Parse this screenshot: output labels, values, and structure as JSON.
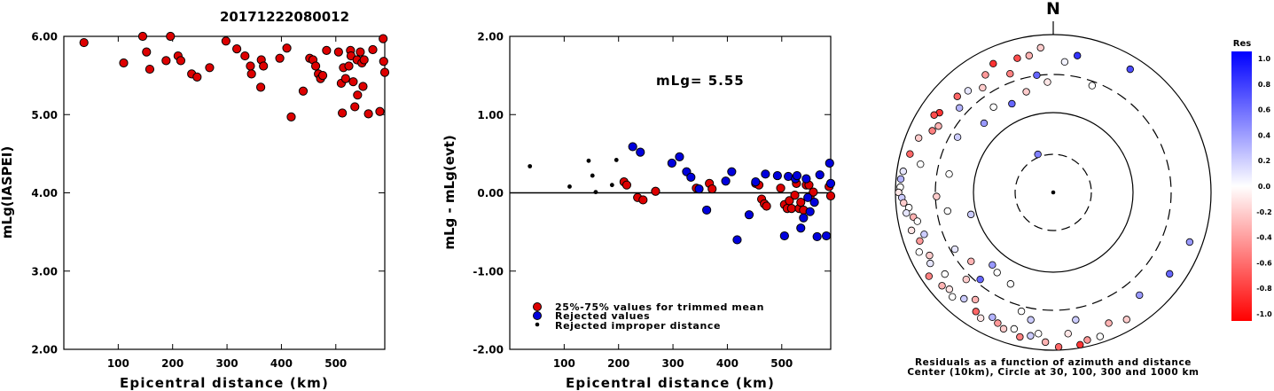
{
  "page_title": "20171222080012",
  "chart_data": [
    {
      "type": "scatter",
      "id": "left",
      "xlabel": "Epicentral distance (km)",
      "ylabel": "mLg(IASPEI)",
      "xlim": [
        0,
        590
      ],
      "ylim": [
        2.0,
        6.0
      ],
      "xticks": [
        100,
        200,
        300,
        400,
        500
      ],
      "yticks": [
        "2.00",
        "3.00",
        "4.00",
        "5.00",
        "6.00"
      ],
      "series": [
        {
          "color": "#dd0000",
          "points": [
            [
              37,
              5.92
            ],
            [
              110,
              5.66
            ],
            [
              145,
              6.0
            ],
            [
              152,
              5.8
            ],
            [
              158,
              5.58
            ],
            [
              196,
              6.0
            ],
            [
              188,
              5.69
            ],
            [
              210,
              5.75
            ],
            [
              215,
              5.69
            ],
            [
              235,
              5.52
            ],
            [
              245,
              5.48
            ],
            [
              268,
              5.6
            ],
            [
              298,
              5.94
            ],
            [
              318,
              5.84
            ],
            [
              333,
              5.75
            ],
            [
              343,
              5.62
            ],
            [
              345,
              5.52
            ],
            [
              362,
              5.35
            ],
            [
              363,
              5.7
            ],
            [
              367,
              5.62
            ],
            [
              397,
              5.72
            ],
            [
              410,
              5.85
            ],
            [
              418,
              4.97
            ],
            [
              440,
              5.3
            ],
            [
              452,
              5.72
            ],
            [
              458,
              5.7
            ],
            [
              463,
              5.62
            ],
            [
              468,
              5.52
            ],
            [
              472,
              5.46
            ],
            [
              476,
              5.5
            ],
            [
              483,
              5.82
            ],
            [
              505,
              5.8
            ],
            [
              510,
              5.4
            ],
            [
              512,
              5.02
            ],
            [
              514,
              5.6
            ],
            [
              518,
              5.46
            ],
            [
              524,
              5.62
            ],
            [
              527,
              5.82
            ],
            [
              528,
              5.75
            ],
            [
              532,
              5.42
            ],
            [
              535,
              5.1
            ],
            [
              539,
              5.7
            ],
            [
              540,
              5.25
            ],
            [
              545,
              5.8
            ],
            [
              548,
              5.66
            ],
            [
              550,
              5.36
            ],
            [
              552,
              5.7
            ],
            [
              560,
              5.01
            ],
            [
              568,
              5.83
            ],
            [
              581,
              5.04
            ],
            [
              587,
              5.97
            ],
            [
              588,
              5.68
            ],
            [
              590,
              5.54
            ]
          ]
        }
      ]
    },
    {
      "type": "scatter",
      "id": "middle",
      "xlabel": "Epicentral distance (km)",
      "ylabel": "mLg - mLg(evt)",
      "xlim": [
        0,
        590
      ],
      "ylim": [
        -2.0,
        2.0
      ],
      "xticks": [
        100,
        200,
        300,
        400,
        500
      ],
      "yticks": [
        "-2.00",
        "-1.00",
        "0.00",
        "1.00",
        "2.00"
      ],
      "annotation": "mLg= 5.55",
      "series": [
        {
          "name": "25%-75% values for trimmed mean",
          "color": "#dd0000",
          "marker": "circle",
          "points": [
            [
              210,
              0.14
            ],
            [
              215,
              0.1
            ],
            [
              235,
              -0.06
            ],
            [
              245,
              -0.09
            ],
            [
              268,
              0.02
            ],
            [
              343,
              0.06
            ],
            [
              367,
              0.12
            ],
            [
              372,
              0.05
            ],
            [
              452,
              0.12
            ],
            [
              458,
              0.1
            ],
            [
              463,
              -0.08
            ],
            [
              468,
              -0.14
            ],
            [
              472,
              -0.17
            ],
            [
              498,
              0.06
            ],
            [
              505,
              -0.15
            ],
            [
              510,
              -0.2
            ],
            [
              514,
              -0.1
            ],
            [
              518,
              -0.2
            ],
            [
              524,
              -0.03
            ],
            [
              527,
              0.12
            ],
            [
              532,
              -0.2
            ],
            [
              535,
              -0.12
            ],
            [
              540,
              -0.22
            ],
            [
              545,
              0.1
            ],
            [
              550,
              0.1
            ],
            [
              552,
              -0.05
            ],
            [
              558,
              0.01
            ],
            [
              587,
              0.08
            ],
            [
              590,
              -0.04
            ]
          ]
        },
        {
          "name": "Rejected values",
          "color": "#0000dd",
          "marker": "circle",
          "points": [
            [
              226,
              0.59
            ],
            [
              240,
              0.52
            ],
            [
              298,
              0.38
            ],
            [
              312,
              0.46
            ],
            [
              325,
              0.27
            ],
            [
              333,
              0.2
            ],
            [
              348,
              0.05
            ],
            [
              362,
              -0.22
            ],
            [
              397,
              0.15
            ],
            [
              408,
              0.27
            ],
            [
              418,
              -0.6
            ],
            [
              440,
              -0.28
            ],
            [
              452,
              0.14
            ],
            [
              470,
              0.24
            ],
            [
              492,
              0.22
            ],
            [
              505,
              -0.55
            ],
            [
              512,
              0.21
            ],
            [
              525,
              0.18
            ],
            [
              528,
              0.22
            ],
            [
              535,
              -0.45
            ],
            [
              540,
              -0.32
            ],
            [
              545,
              0.18
            ],
            [
              548,
              -0.06
            ],
            [
              552,
              -0.24
            ],
            [
              560,
              -0.12
            ],
            [
              565,
              -0.56
            ],
            [
              570,
              0.23
            ],
            [
              582,
              -0.55
            ],
            [
              588,
              0.38
            ],
            [
              590,
              0.12
            ]
          ]
        },
        {
          "name": "Rejected improper distance",
          "color": "#000000",
          "marker": "dot",
          "points": [
            [
              37,
              0.34
            ],
            [
              110,
              0.08
            ],
            [
              145,
              0.41
            ],
            [
              152,
              0.22
            ],
            [
              158,
              0.01
            ],
            [
              188,
              0.1
            ],
            [
              196,
              0.42
            ]
          ]
        }
      ]
    },
    {
      "type": "polar",
      "id": "right",
      "north_label": "N",
      "caption_line1": "Residuals as a function of azimuth and distance",
      "caption_line2": "Center (10km), Circle at 30, 100, 300 and 1000 km",
      "points": [
        {
          "az": 355,
          "r": 0.92,
          "res": -0.2
        },
        {
          "az": 5,
          "r": 0.83,
          "res": 0.05
        },
        {
          "az": 10,
          "r": 0.88,
          "res": 0.8
        },
        {
          "az": 32,
          "r": 0.92,
          "res": 0.7
        },
        {
          "az": 20,
          "r": 0.72,
          "res": 0.0
        },
        {
          "az": 345,
          "r": 0.88,
          "res": -0.7
        },
        {
          "az": 340,
          "r": 0.8,
          "res": -0.5
        },
        {
          "az": 350,
          "r": 0.88,
          "res": -0.3
        },
        {
          "az": 352,
          "r": 0.75,
          "res": 0.6
        },
        {
          "az": 357,
          "r": 0.7,
          "res": -0.1
        },
        {
          "az": 335,
          "r": 0.9,
          "res": -0.8
        },
        {
          "az": 330,
          "r": 0.86,
          "res": -0.4
        },
        {
          "az": 326,
          "r": 0.8,
          "res": -0.2
        },
        {
          "az": 320,
          "r": 0.84,
          "res": 0.1
        },
        {
          "az": 315,
          "r": 0.86,
          "res": -0.6
        },
        {
          "az": 312,
          "r": 0.8,
          "res": 0.3
        },
        {
          "az": 305,
          "r": 0.88,
          "res": -0.8
        },
        {
          "az": 303,
          "r": 0.9,
          "res": -0.7
        },
        {
          "az": 300,
          "r": 0.84,
          "res": -0.3
        },
        {
          "az": 297,
          "r": 0.86,
          "res": -0.5
        },
        {
          "az": 292,
          "r": 0.92,
          "res": -0.2
        },
        {
          "az": 285,
          "r": 0.94,
          "res": -0.6
        },
        {
          "az": 282,
          "r": 0.86,
          "res": 0.0
        },
        {
          "az": 278,
          "r": 0.96,
          "res": 0.1
        },
        {
          "az": 275,
          "r": 0.97,
          "res": 0.3
        },
        {
          "az": 272,
          "r": 0.97,
          "res": 0.0
        },
        {
          "az": 270,
          "r": 0.98,
          "res": -0.1
        },
        {
          "az": 268,
          "r": 0.96,
          "res": 0.2
        },
        {
          "az": 266,
          "r": 0.95,
          "res": -0.2
        },
        {
          "az": 264,
          "r": 0.92,
          "res": 0.0
        },
        {
          "az": 262,
          "r": 0.94,
          "res": 0.1
        },
        {
          "az": 260,
          "r": 0.9,
          "res": -0.3
        },
        {
          "az": 258,
          "r": 0.88,
          "res": 0.0
        },
        {
          "az": 255,
          "r": 0.93,
          "res": -0.1
        },
        {
          "az": 252,
          "r": 0.86,
          "res": 0.2
        },
        {
          "az": 250,
          "r": 0.9,
          "res": -0.4
        },
        {
          "az": 246,
          "r": 0.93,
          "res": 0.0
        },
        {
          "az": 243,
          "r": 0.88,
          "res": -0.2
        },
        {
          "az": 240,
          "r": 0.9,
          "res": 0.1
        },
        {
          "az": 236,
          "r": 0.95,
          "res": -0.5
        },
        {
          "az": 233,
          "r": 0.86,
          "res": 0.0
        },
        {
          "az": 230,
          "r": 0.92,
          "res": -0.3
        },
        {
          "az": 227,
          "r": 0.9,
          "res": -0.1
        },
        {
          "az": 224,
          "r": 0.92,
          "res": 0.0
        },
        {
          "az": 220,
          "r": 0.88,
          "res": 0.2
        },
        {
          "az": 216,
          "r": 0.84,
          "res": -0.3
        },
        {
          "az": 213,
          "r": 0.9,
          "res": -0.6
        },
        {
          "az": 210,
          "r": 0.92,
          "res": -0.1
        },
        {
          "az": 206,
          "r": 0.88,
          "res": 0.3
        },
        {
          "az": 203,
          "r": 0.9,
          "res": -0.4
        },
        {
          "az": 200,
          "r": 0.92,
          "res": -0.2
        },
        {
          "az": 196,
          "r": 0.9,
          "res": 0.0
        },
        {
          "az": 193,
          "r": 0.94,
          "res": -0.5
        },
        {
          "az": 189,
          "r": 0.92,
          "res": 0.2
        },
        {
          "az": 186,
          "r": 0.9,
          "res": 0.0
        },
        {
          "az": 183,
          "r": 0.95,
          "res": -0.3
        },
        {
          "az": 178,
          "r": 0.98,
          "res": -0.6
        },
        {
          "az": 174,
          "r": 0.9,
          "res": -0.1
        },
        {
          "az": 170,
          "r": 0.98,
          "res": -0.8
        },
        {
          "az": 167,
          "r": 0.96,
          "res": -0.4
        },
        {
          "az": 162,
          "r": 0.96,
          "res": 0.0
        },
        {
          "az": 157,
          "r": 0.9,
          "res": -0.3
        },
        {
          "az": 150,
          "r": 0.93,
          "res": -0.2
        },
        {
          "az": 140,
          "r": 0.85,
          "res": 0.4
        },
        {
          "az": 125,
          "r": 0.9,
          "res": 0.6
        },
        {
          "az": 110,
          "r": 0.92,
          "res": 0.4
        },
        {
          "az": 255,
          "r": 0.54,
          "res": 0.2
        },
        {
          "az": 280,
          "r": 0.67,
          "res": 0.0
        },
        {
          "az": 268,
          "r": 0.74,
          "res": -0.2
        },
        {
          "az": 240,
          "r": 0.72,
          "res": 0.1
        },
        {
          "az": 230,
          "r": 0.68,
          "res": -0.3
        },
        {
          "az": 215,
          "r": 0.62,
          "res": 0.0
        },
        {
          "az": 205,
          "r": 0.64,
          "res": 0.0
        },
        {
          "az": 300,
          "r": 0.7,
          "res": 0.2
        },
        {
          "az": 315,
          "r": 0.62,
          "res": 0.4
        },
        {
          "az": 325,
          "r": 0.66,
          "res": 0.0
        },
        {
          "az": 335,
          "r": 0.62,
          "res": 0.6
        },
        {
          "az": 345,
          "r": 0.66,
          "res": -0.2
        },
        {
          "az": 225,
          "r": 0.78,
          "res": -0.2
        },
        {
          "az": 220,
          "r": 0.72,
          "res": 0.6
        },
        {
          "az": 195,
          "r": 0.78,
          "res": 0.0
        },
        {
          "az": 190,
          "r": 0.82,
          "res": 0.2
        },
        {
          "az": 220,
          "r": 0.6,
          "res": 0.4
        },
        {
          "az": 260,
          "r": 0.68,
          "res": 0.0
        },
        {
          "az": 170,
          "r": 0.82,
          "res": 0.2
        },
        {
          "az": 338,
          "r": 0.26,
          "res": 0.5
        }
      ],
      "colorbar": {
        "title": "Res",
        "labels": [
          "1.0",
          "0.8",
          "0.6",
          "0.4",
          "0.2",
          "0.0",
          "-0.2",
          "-0.4",
          "-0.6",
          "-0.8",
          "-1.0"
        ]
      }
    }
  ]
}
